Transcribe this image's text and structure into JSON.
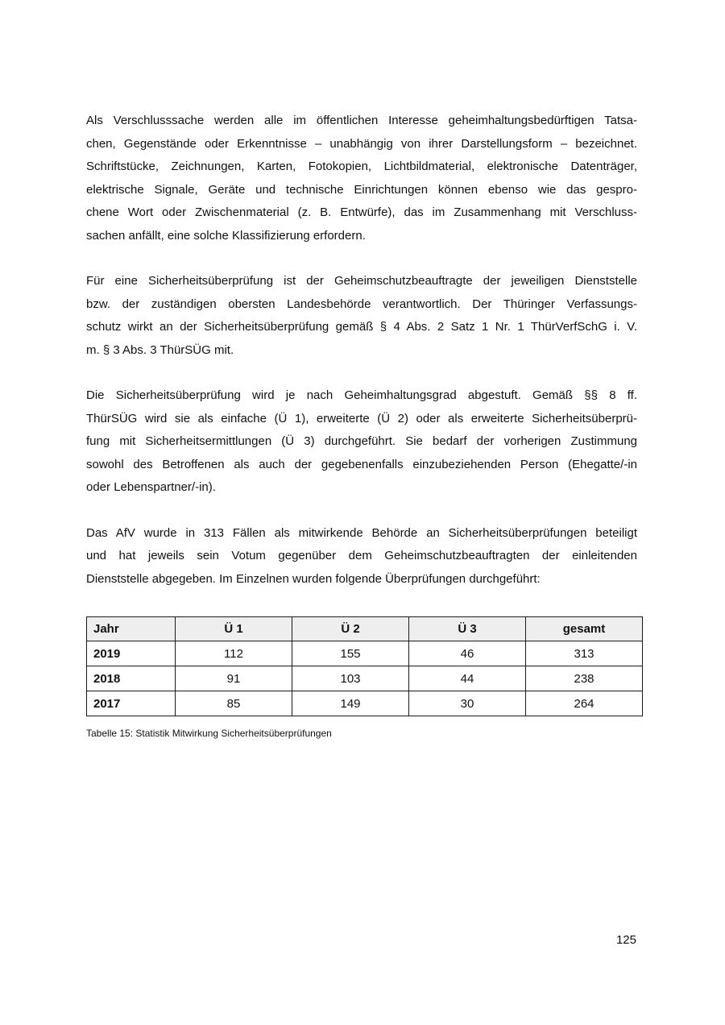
{
  "document": {
    "page_number": "125",
    "paragraphs": [
      {
        "lines": [
          "Als Verschlusssache werden alle im öffentlichen Interesse geheimhaltungsbedürftigen Tatsa-",
          "chen, Gegenstände oder Erkenntnisse – unabhängig von ihrer Darstellungsform – bezeichnet.",
          "Schriftstücke, Zeichnungen, Karten, Fotokopien, Lichtbildmaterial, elektronische Datenträger,",
          "elektrische Signale, Geräte und technische Einrichtungen können ebenso wie das gespro-",
          "chene Wort oder Zwischenmaterial (z. B. Entwürfe), das im Zusammenhang mit Verschluss-",
          "sachen anfällt, eine solche Klassifizierung erfordern."
        ]
      },
      {
        "lines": [
          "Für eine Sicherheitsüberprüfung ist der Geheimschutzbeauftragte der jeweiligen Dienststelle",
          "bzw. der zuständigen obersten Landesbehörde verantwortlich. Der Thüringer Verfassungs-",
          "schutz wirkt an der Sicherheitsüberprüfung gemäß § 4 Abs. 2 Satz 1 Nr. 1 ThürVerfSchG i. V.",
          "m. § 3 Abs. 3 ThürSÜG mit."
        ]
      },
      {
        "lines": [
          "Die Sicherheitsüberprüfung wird je nach Geheimhaltungsgrad abgestuft. Gemäß §§ 8 ff.",
          "ThürSÜG wird sie als einfache (Ü 1), erweiterte (Ü 2) oder als erweiterte Sicherheitsüberprü-",
          "fung mit Sicherheitsermittlungen (Ü 3) durchgeführt. Sie bedarf der vorherigen Zustimmung",
          "sowohl des Betroffenen als auch der gegebenenfalls einzubeziehenden Person (Ehegatte/-in",
          "oder Lebenspartner/-in)."
        ]
      },
      {
        "lines": [
          "Das AfV wurde in 313 Fällen als mitwirkende Behörde an Sicherheitsüberprüfungen beteiligt",
          "und hat jeweils sein Votum gegenüber dem Geheimschutzbeauftragten der einleitenden",
          "Dienststelle abgegeben. Im Einzelnen wurden folgende Überprüfungen durchgeführt:"
        ]
      }
    ],
    "table": {
      "headers": [
        "Jahr",
        "Ü 1",
        "Ü 2",
        "Ü 3",
        "gesamt"
      ],
      "rows": [
        [
          "2019",
          "112",
          "155",
          "46",
          "313"
        ],
        [
          "2018",
          "91",
          "103",
          "44",
          "238"
        ],
        [
          "2017",
          "85",
          "149",
          "30",
          "264"
        ]
      ],
      "caption": "Tabelle 15: Statistik Mitwirkung Sicherheitsüberprüfungen",
      "header_bg": "#eeeeee",
      "border_color": "#1a1a1a"
    },
    "chart_data": {
      "type": "table",
      "title": "Tabelle 15: Statistik Mitwirkung Sicherheitsüberprüfungen",
      "categories": [
        "2019",
        "2018",
        "2017"
      ],
      "series": [
        {
          "name": "Ü 1",
          "values": [
            112,
            91,
            85
          ]
        },
        {
          "name": "Ü 2",
          "values": [
            155,
            103,
            149
          ]
        },
        {
          "name": "Ü 3",
          "values": [
            46,
            44,
            30
          ]
        },
        {
          "name": "gesamt",
          "values": [
            313,
            238,
            264
          ]
        }
      ]
    }
  }
}
